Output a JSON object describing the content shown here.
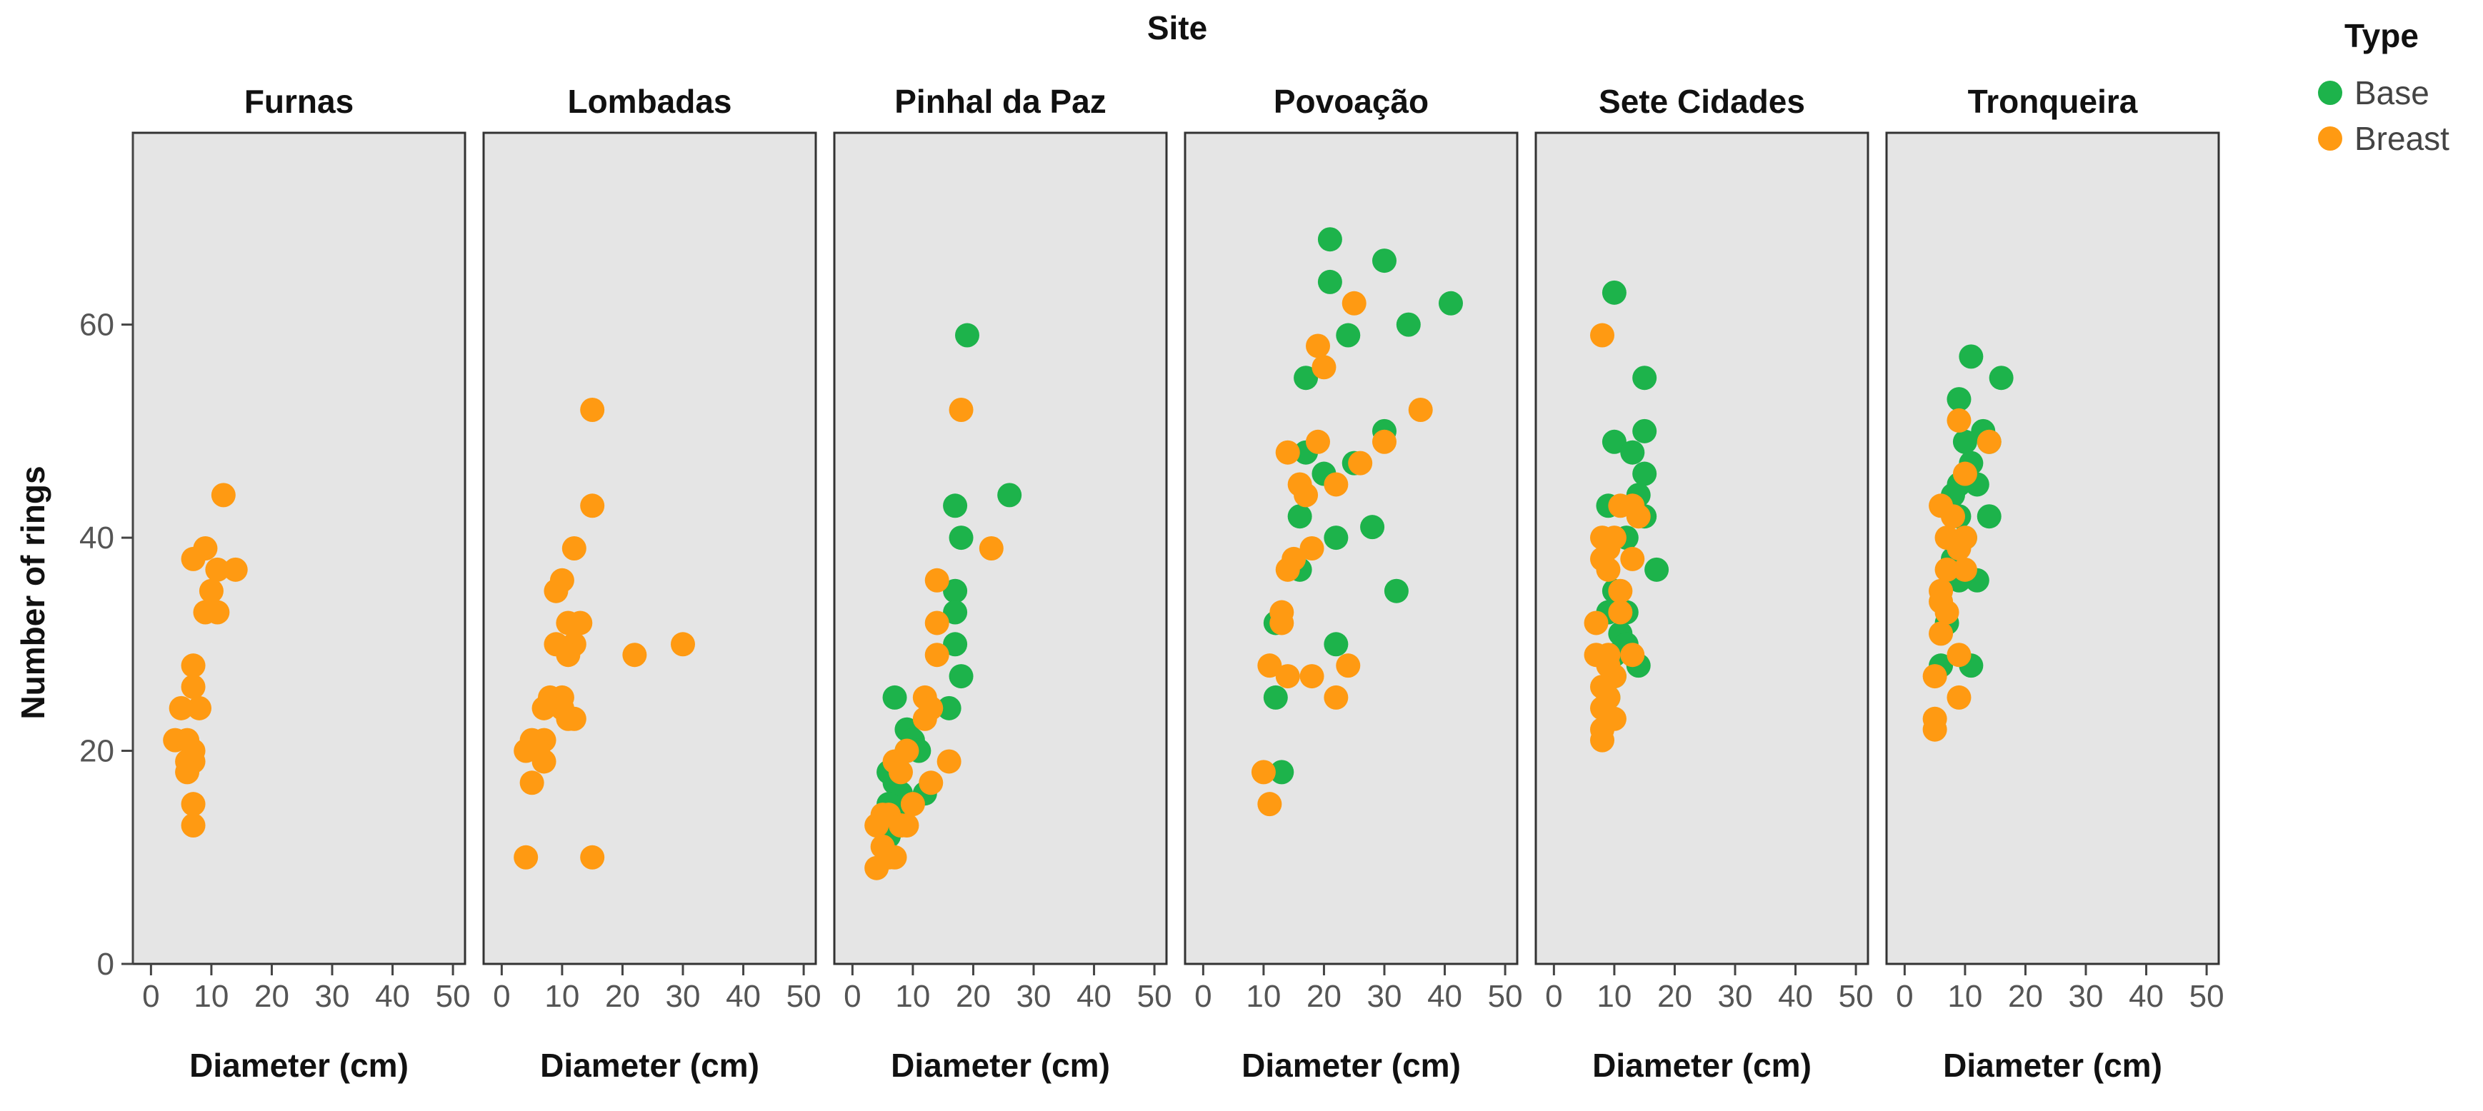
{
  "chart_data": {
    "type": "scatter",
    "facet_title": "Site",
    "xlabel": "Diameter (cm)",
    "ylabel": "Number of rings",
    "xlim": [
      -3,
      52
    ],
    "ylim": [
      0,
      78
    ],
    "x_ticks": [
      0,
      10,
      20,
      30,
      40,
      50
    ],
    "y_ticks": [
      0,
      20,
      40,
      60
    ],
    "grid": false,
    "legend": {
      "title": "Type",
      "placement": "top-right",
      "entries": [
        {
          "name": "Base",
          "color": "#1db34b"
        },
        {
          "name": "Breast",
          "color": "#ff9a12"
        }
      ]
    },
    "panels": [
      {
        "title": "Furnas",
        "series": [
          {
            "name": "Breast",
            "points": [
              [
                12,
                44
              ],
              [
                9,
                39
              ],
              [
                7,
                38
              ],
              [
                14,
                37
              ],
              [
                11,
                37
              ],
              [
                10,
                35
              ],
              [
                9,
                33
              ],
              [
                11,
                33
              ],
              [
                7,
                28
              ],
              [
                7,
                26
              ],
              [
                8,
                24
              ],
              [
                5,
                24
              ],
              [
                4,
                21
              ],
              [
                6,
                21
              ],
              [
                7,
                20
              ],
              [
                6,
                19
              ],
              [
                7,
                19
              ],
              [
                6,
                18
              ],
              [
                7,
                15
              ],
              [
                7,
                13
              ]
            ]
          }
        ]
      },
      {
        "title": "Lombadas",
        "series": [
          {
            "name": "Breast",
            "points": [
              [
                15,
                52
              ],
              [
                15,
                43
              ],
              [
                12,
                39
              ],
              [
                10,
                36
              ],
              [
                9,
                35
              ],
              [
                11,
                32
              ],
              [
                13,
                32
              ],
              [
                9,
                30
              ],
              [
                12,
                30
              ],
              [
                11,
                29
              ],
              [
                22,
                29
              ],
              [
                30,
                30
              ],
              [
                8,
                25
              ],
              [
                10,
                25
              ],
              [
                10,
                24
              ],
              [
                7,
                24
              ],
              [
                12,
                23
              ],
              [
                11,
                23
              ],
              [
                5,
                21
              ],
              [
                7,
                21
              ],
              [
                6,
                20
              ],
              [
                4,
                20
              ],
              [
                7,
                19
              ],
              [
                5,
                17
              ],
              [
                4,
                10
              ],
              [
                15,
                10
              ]
            ]
          }
        ]
      },
      {
        "title": "Pinhal da Paz",
        "series": [
          {
            "name": "Base",
            "points": [
              [
                19,
                59
              ],
              [
                26,
                44
              ],
              [
                17,
                43
              ],
              [
                18,
                40
              ],
              [
                17,
                35
              ],
              [
                17,
                33
              ],
              [
                17,
                30
              ],
              [
                18,
                27
              ],
              [
                16,
                24
              ],
              [
                7,
                25
              ],
              [
                9,
                22
              ],
              [
                10,
                21
              ],
              [
                11,
                20
              ],
              [
                9,
                20
              ],
              [
                6,
                18
              ],
              [
                7,
                17
              ],
              [
                8,
                16
              ],
              [
                12,
                16
              ],
              [
                6,
                15
              ],
              [
                8,
                14
              ],
              [
                7,
                13
              ],
              [
                5,
                13
              ],
              [
                6,
                12
              ]
            ]
          },
          {
            "name": "Breast",
            "points": [
              [
                18,
                52
              ],
              [
                23,
                39
              ],
              [
                14,
                36
              ],
              [
                14,
                32
              ],
              [
                14,
                29
              ],
              [
                12,
                25
              ],
              [
                13,
                24
              ],
              [
                12,
                23
              ],
              [
                9,
                20
              ],
              [
                7,
                19
              ],
              [
                8,
                18
              ],
              [
                16,
                19
              ],
              [
                13,
                17
              ],
              [
                10,
                15
              ],
              [
                5,
                14
              ],
              [
                6,
                14
              ],
              [
                8,
                13
              ],
              [
                9,
                13
              ],
              [
                4,
                13
              ],
              [
                5,
                11
              ],
              [
                7,
                10
              ],
              [
                6,
                10
              ],
              [
                4,
                9
              ]
            ]
          }
        ]
      },
      {
        "title": "Povoação",
        "series": [
          {
            "name": "Base",
            "points": [
              [
                21,
                68
              ],
              [
                30,
                66
              ],
              [
                21,
                64
              ],
              [
                41,
                62
              ],
              [
                34,
                60
              ],
              [
                24,
                59
              ],
              [
                17,
                55
              ],
              [
                30,
                50
              ],
              [
                17,
                48
              ],
              [
                20,
                46
              ],
              [
                25,
                47
              ],
              [
                16,
                42
              ],
              [
                28,
                41
              ],
              [
                22,
                40
              ],
              [
                16,
                37
              ],
              [
                12,
                32
              ],
              [
                32,
                35
              ],
              [
                22,
                30
              ],
              [
                12,
                25
              ],
              [
                13,
                18
              ]
            ]
          },
          {
            "name": "Breast",
            "points": [
              [
                25,
                62
              ],
              [
                19,
                58
              ],
              [
                20,
                56
              ],
              [
                36,
                52
              ],
              [
                19,
                49
              ],
              [
                30,
                49
              ],
              [
                14,
                48
              ],
              [
                26,
                47
              ],
              [
                16,
                45
              ],
              [
                22,
                45
              ],
              [
                17,
                44
              ],
              [
                18,
                39
              ],
              [
                15,
                38
              ],
              [
                14,
                37
              ],
              [
                13,
                33
              ],
              [
                13,
                32
              ],
              [
                11,
                28
              ],
              [
                24,
                28
              ],
              [
                18,
                27
              ],
              [
                14,
                27
              ],
              [
                22,
                25
              ],
              [
                10,
                18
              ],
              [
                11,
                15
              ]
            ]
          }
        ]
      },
      {
        "title": "Sete Cidades",
        "series": [
          {
            "name": "Base",
            "points": [
              [
                10,
                63
              ],
              [
                15,
                55
              ],
              [
                15,
                50
              ],
              [
                10,
                49
              ],
              [
                13,
                48
              ],
              [
                15,
                46
              ],
              [
                14,
                44
              ],
              [
                9,
                43
              ],
              [
                15,
                42
              ],
              [
                12,
                40
              ],
              [
                17,
                37
              ],
              [
                10,
                35
              ],
              [
                9,
                33
              ],
              [
                12,
                33
              ],
              [
                11,
                31
              ],
              [
                12,
                30
              ],
              [
                10,
                29
              ],
              [
                14,
                28
              ],
              [
                10,
                27
              ],
              [
                9,
                25
              ]
            ]
          },
          {
            "name": "Breast",
            "points": [
              [
                8,
                59
              ],
              [
                11,
                43
              ],
              [
                13,
                43
              ],
              [
                14,
                42
              ],
              [
                8,
                40
              ],
              [
                10,
                40
              ],
              [
                9,
                39
              ],
              [
                8,
                38
              ],
              [
                13,
                38
              ],
              [
                9,
                37
              ],
              [
                11,
                35
              ],
              [
                11,
                33
              ],
              [
                7,
                32
              ],
              [
                7,
                29
              ],
              [
                9,
                29
              ],
              [
                13,
                29
              ],
              [
                9,
                28
              ],
              [
                10,
                27
              ],
              [
                8,
                26
              ],
              [
                9,
                25
              ],
              [
                8,
                24
              ],
              [
                8,
                22
              ],
              [
                10,
                23
              ],
              [
                8,
                21
              ]
            ]
          }
        ]
      },
      {
        "title": "Tronqueira",
        "series": [
          {
            "name": "Base",
            "points": [
              [
                11,
                57
              ],
              [
                16,
                55
              ],
              [
                9,
                53
              ],
              [
                13,
                50
              ],
              [
                10,
                49
              ],
              [
                14,
                49
              ],
              [
                11,
                47
              ],
              [
                9,
                45
              ],
              [
                12,
                45
              ],
              [
                8,
                44
              ],
              [
                9,
                42
              ],
              [
                14,
                42
              ],
              [
                10,
                40
              ],
              [
                8,
                38
              ],
              [
                12,
                36
              ],
              [
                9,
                36
              ],
              [
                7,
                32
              ],
              [
                6,
                28
              ],
              [
                11,
                28
              ]
            ]
          },
          {
            "name": "Breast",
            "points": [
              [
                9,
                51
              ],
              [
                14,
                49
              ],
              [
                10,
                46
              ],
              [
                6,
                43
              ],
              [
                8,
                42
              ],
              [
                7,
                40
              ],
              [
                10,
                40
              ],
              [
                9,
                39
              ],
              [
                7,
                37
              ],
              [
                10,
                37
              ],
              [
                6,
                35
              ],
              [
                6,
                34
              ],
              [
                7,
                33
              ],
              [
                6,
                31
              ],
              [
                9,
                29
              ],
              [
                5,
                27
              ],
              [
                9,
                25
              ],
              [
                5,
                23
              ],
              [
                5,
                22
              ]
            ]
          }
        ]
      }
    ]
  }
}
